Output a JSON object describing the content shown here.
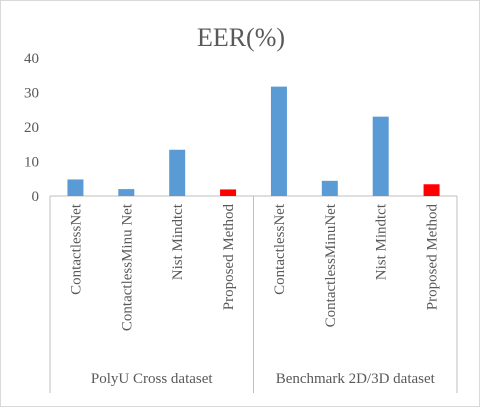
{
  "chart_data": {
    "type": "bar",
    "title": "EER(%)",
    "ylim": [
      0,
      40
    ],
    "yticks": [
      0,
      10,
      20,
      30,
      40
    ],
    "grid": false,
    "groups": [
      {
        "label": "PolyU Cross dataset",
        "categories": [
          "ContactlessNet",
          "ContactlessMinu Net",
          "Nist Mindtct",
          "Proposed Method"
        ],
        "values": [
          4.8,
          2.0,
          13.4,
          1.9
        ]
      },
      {
        "label": "Benchmark 2D/3D dataset",
        "categories": [
          "ContactlessNet",
          "ContactlessMinuNet",
          "Nist Mindtct",
          "Proposed Method"
        ],
        "values": [
          31.7,
          4.4,
          23.0,
          3.4
        ]
      }
    ],
    "colors": {
      "default": "#5b9bd5",
      "highlight": "#ff0000",
      "axis": "#bfbfbf",
      "text": "#595959"
    },
    "highlight_category": "Proposed Method"
  }
}
